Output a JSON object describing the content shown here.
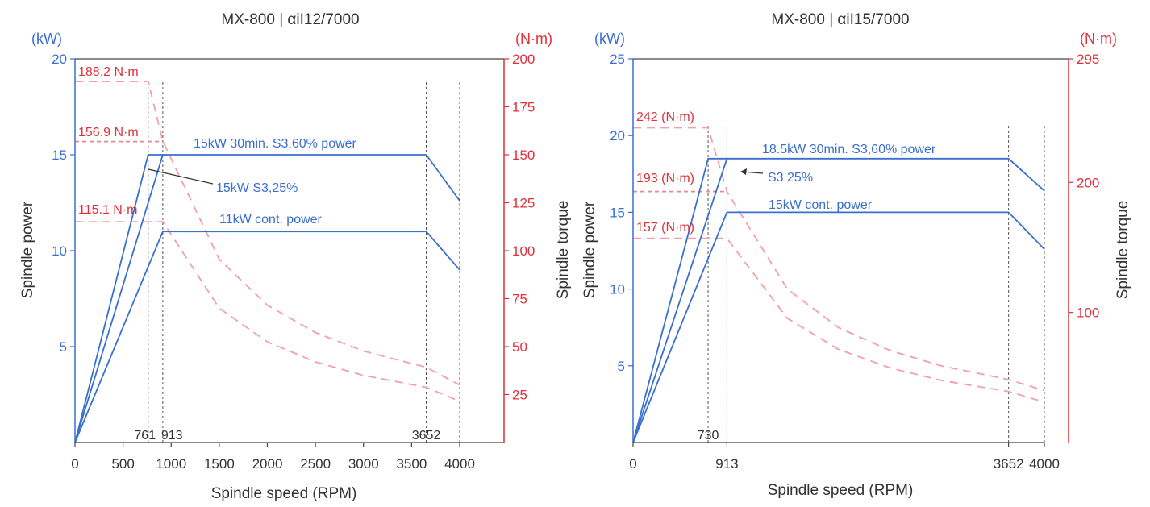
{
  "chart_data": [
    {
      "type": "line",
      "title": "MX-800 | αiI12/7000",
      "xlabel": "Spindle speed (RPM)",
      "ylabel": "Spindle power",
      "y2label": "Spindle torque",
      "y_unit": "(kW)",
      "y2_unit": "(N·m)",
      "xlim": [
        0,
        4500
      ],
      "ylim": [
        0,
        20
      ],
      "y2lim": [
        0,
        200
      ],
      "x_ticks": [
        0,
        500,
        1000,
        1500,
        2000,
        2500,
        3000,
        3500,
        4000
      ],
      "y_ticks": [
        5,
        10,
        15,
        20
      ],
      "y2_ticks": [
        25,
        50,
        75,
        100,
        125,
        150,
        175,
        200
      ],
      "marker_speeds": [
        761,
        913,
        3652,
        4000
      ],
      "marker_labels": [
        "761",
        "913",
        "3652"
      ],
      "power_series": [
        {
          "name": "15kW 30min. S3,60% power",
          "x": [
            0,
            913,
            3652,
            4000
          ],
          "y": [
            0,
            15,
            15,
            12.6
          ]
        },
        {
          "name": "15kW S3,25%",
          "x": [
            0,
            761,
            913
          ],
          "y": [
            0,
            15,
            15
          ]
        },
        {
          "name": "11kW cont. power",
          "x": [
            0,
            913,
            3652,
            4000
          ],
          "y": [
            0,
            11,
            11,
            9
          ]
        }
      ],
      "torque_series": [
        {
          "name": "188.2 N·m",
          "x": [
            0,
            761,
            913,
            1500,
            2000,
            2500,
            3000,
            3652,
            4000
          ],
          "y": [
            188.2,
            188.2,
            157,
            95.5,
            71.6,
            57.3,
            47.7,
            39.2,
            30
          ]
        },
        {
          "name": "156.9 N·m",
          "x": [
            0,
            913
          ],
          "y": [
            156.9,
            156.9
          ]
        },
        {
          "name": "115.1 N·m",
          "x": [
            0,
            913,
            1500,
            2000,
            2500,
            3000,
            3652,
            4000
          ],
          "y": [
            115.1,
            115.1,
            70,
            52.5,
            42,
            35,
            28.8,
            21.5
          ]
        }
      ],
      "annotations": {
        "power_60": "15kW 30min. S3,60% power",
        "power_25": "15kW S3,25%",
        "power_cont": "11kW cont. power",
        "torque_max": "188.2 N·m",
        "torque_mid": "156.9 N·m",
        "torque_cont": "115.1 N·m"
      }
    },
    {
      "type": "line",
      "title": "MX-800 | αiI15/7000",
      "xlabel": "Spindle speed (RPM)",
      "ylabel": "Spindle power",
      "y2label": "Spindle torque",
      "y_unit": "(kW)",
      "y2_unit": "(N·m)",
      "xlim": [
        0,
        4000
      ],
      "ylim": [
        0,
        25
      ],
      "y2lim": [
        0,
        295
      ],
      "x_ticks": [
        0,
        913,
        3652,
        4000
      ],
      "y_ticks": [
        5,
        10,
        15,
        20,
        25
      ],
      "y2_ticks": [
        100,
        200,
        295
      ],
      "marker_speeds": [
        730,
        913,
        3652,
        4000
      ],
      "marker_labels": [
        "730"
      ],
      "power_series": [
        {
          "name": "18.5kW 30min. S3,60% power",
          "x": [
            0,
            913,
            3652,
            4000
          ],
          "y": [
            0,
            18.5,
            18.5,
            16.4
          ]
        },
        {
          "name": "S3 25%",
          "x": [
            0,
            730,
            913
          ],
          "y": [
            0,
            18.5,
            18.5
          ]
        },
        {
          "name": "15kW cont. power",
          "x": [
            0,
            913,
            3652,
            4000
          ],
          "y": [
            0,
            15,
            15,
            12.6
          ]
        }
      ],
      "torque_series": [
        {
          "name": "242 (N·m)",
          "x": [
            0,
            730,
            913,
            1500,
            2000,
            2500,
            3000,
            3652,
            4000
          ],
          "y": [
            242,
            242,
            193,
            118,
            88.3,
            70.7,
            58.9,
            48.4,
            40
          ]
        },
        {
          "name": "193 (N·m)",
          "x": [
            0,
            913
          ],
          "y": [
            193,
            193
          ]
        },
        {
          "name": "157 (N·m)",
          "x": [
            0,
            913,
            1500,
            2000,
            2500,
            3000,
            3652,
            4000
          ],
          "y": [
            157,
            157,
            95.5,
            71.6,
            57.3,
            47.7,
            39.2,
            31
          ]
        }
      ],
      "annotations": {
        "power_60": "18.5kW 30min. S3,60% power",
        "power_25": "S3 25%",
        "power_cont": "15kW cont. power",
        "torque_max": "242 (N·m)",
        "torque_mid": "193 (N·m)",
        "torque_cont": "157 (N·m)"
      }
    }
  ],
  "colors": {
    "power": "#3a6fd0",
    "torque": "#e0303a",
    "torque_dash": "#f3a0a5",
    "axis_text": "#333333",
    "marker": "#555555"
  }
}
